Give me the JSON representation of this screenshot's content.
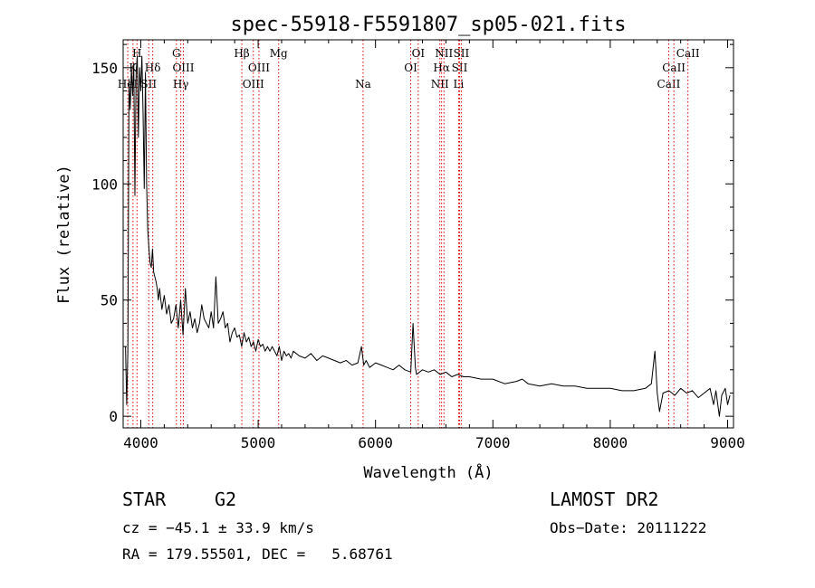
{
  "chart_data": {
    "type": "line",
    "title": "spec-55918-F5591807_sp05-021.fits",
    "xlabel": "Wavelength (Å)",
    "ylabel": "Flux (relative)",
    "xlim": [
      3850,
      9050
    ],
    "ylim": [
      -5,
      162
    ],
    "x_ticks": [
      4000,
      5000,
      6000,
      7000,
      8000,
      9000
    ],
    "x_tick_labels": [
      "4000",
      "5000",
      "6000",
      "7000",
      "8000",
      "9000"
    ],
    "y_ticks": [
      0,
      50,
      100,
      150
    ],
    "y_tick_labels": [
      "0",
      "50",
      "100",
      "150"
    ],
    "grid": false,
    "series": [
      {
        "x": [
          3870,
          3880,
          3890,
          3900,
          3910,
          3920,
          3930,
          3940,
          3950,
          3960,
          3970,
          3980,
          3990,
          4000,
          4010,
          4020,
          4030,
          4040,
          4050,
          4060,
          4070,
          4080,
          4090,
          4100,
          4110,
          4120,
          4130,
          4140,
          4150,
          4160,
          4180,
          4200,
          4220,
          4240,
          4260,
          4280,
          4300,
          4320,
          4340,
          4360,
          4380,
          4400,
          4420,
          4440,
          4460,
          4480,
          4500,
          4520,
          4540,
          4560,
          4580,
          4600,
          4620,
          4640,
          4660,
          4680,
          4700,
          4720,
          4740,
          4760,
          4780,
          4800,
          4820,
          4840,
          4860,
          4880,
          4900,
          4920,
          4940,
          4960,
          4980,
          5000,
          5020,
          5040,
          5060,
          5080,
          5100,
          5120,
          5140,
          5160,
          5180,
          5200,
          5220,
          5240,
          5260,
          5280,
          5300,
          5350,
          5400,
          5450,
          5500,
          5550,
          5600,
          5650,
          5700,
          5750,
          5800,
          5850,
          5880,
          5900,
          5920,
          5950,
          6000,
          6050,
          6100,
          6150,
          6200,
          6250,
          6300,
          6320,
          6340,
          6350,
          6400,
          6450,
          6500,
          6550,
          6600,
          6650,
          6700,
          6750,
          6800,
          6900,
          7000,
          7100,
          7200,
          7250,
          7300,
          7400,
          7500,
          7600,
          7700,
          7800,
          7900,
          8000,
          8100,
          8200,
          8300,
          8350,
          8380,
          8400,
          8420,
          8450,
          8500,
          8550,
          8600,
          8650,
          8700,
          8750,
          8800,
          8850,
          8880,
          8900,
          8930,
          8950,
          8980,
          9000,
          9020
        ],
        "y": [
          30,
          5,
          28,
          145,
          132,
          150,
          138,
          152,
          95,
          148,
          155,
          120,
          150,
          140,
          155,
          130,
          98,
          148,
          100,
          80,
          72,
          66,
          64,
          72,
          62,
          60,
          58,
          55,
          50,
          55,
          46,
          52,
          44,
          48,
          40,
          42,
          48,
          38,
          50,
          35,
          55,
          40,
          45,
          38,
          42,
          36,
          40,
          48,
          42,
          40,
          38,
          45,
          38,
          60,
          40,
          42,
          45,
          38,
          40,
          32,
          36,
          38,
          34,
          35,
          30,
          36,
          32,
          34,
          30,
          32,
          28,
          33,
          30,
          31,
          28,
          30,
          28,
          30,
          28,
          26,
          30,
          24,
          28,
          26,
          27,
          25,
          28,
          26,
          25,
          27,
          24,
          26,
          25,
          24,
          23,
          24,
          22,
          23,
          30,
          22,
          24,
          21,
          23,
          22,
          21,
          20,
          22,
          20,
          19,
          40,
          21,
          18,
          20,
          19,
          20,
          18,
          19,
          17,
          18,
          17,
          17,
          16,
          16,
          14,
          15,
          16,
          14,
          13,
          14,
          13,
          13,
          12,
          12,
          12,
          11,
          11,
          12,
          14,
          28,
          10,
          2,
          10,
          11,
          9,
          12,
          10,
          11,
          8,
          10,
          12,
          5,
          11,
          0,
          9,
          12,
          5,
          9
        ]
      }
    ],
    "line_markers": [
      {
        "wavelength": 3889,
        "label": "HeI",
        "row": 3
      },
      {
        "wavelength": 3934,
        "label": "K",
        "row": 2
      },
      {
        "wavelength": 3968,
        "label": "H",
        "row": 1
      },
      {
        "wavelength": 4068,
        "label": "SII",
        "row": 3
      },
      {
        "wavelength": 4102,
        "label": "Hδ",
        "row": 2
      },
      {
        "wavelength": 4304,
        "label": "G",
        "row": 1
      },
      {
        "wavelength": 4341,
        "label": "Hγ",
        "row": 3
      },
      {
        "wavelength": 4363,
        "label": "OIII",
        "row": 2
      },
      {
        "wavelength": 4861,
        "label": "Hβ",
        "row": 1
      },
      {
        "wavelength": 4959,
        "label": "OIII",
        "row": 3
      },
      {
        "wavelength": 5007,
        "label": "OIII",
        "row": 2
      },
      {
        "wavelength": 5175,
        "label": "Mg",
        "row": 1
      },
      {
        "wavelength": 5894,
        "label": "Na",
        "row": 3
      },
      {
        "wavelength": 6300,
        "label": "OI",
        "row": 2
      },
      {
        "wavelength": 6364,
        "label": "OI",
        "row": 1
      },
      {
        "wavelength": 6548,
        "label": "NII",
        "row": 3
      },
      {
        "wavelength": 6563,
        "label": "Hα",
        "row": 2
      },
      {
        "wavelength": 6583,
        "label": "NII",
        "row": 1
      },
      {
        "wavelength": 6708,
        "label": "Li",
        "row": 3
      },
      {
        "wavelength": 6716,
        "label": "SII",
        "row": 2
      },
      {
        "wavelength": 6731,
        "label": "SII",
        "row": 1
      },
      {
        "wavelength": 8498,
        "label": "CaII",
        "row": 3
      },
      {
        "wavelength": 8542,
        "label": "CaII",
        "row": 2
      },
      {
        "wavelength": 8662,
        "label": "CaII",
        "row": 1
      }
    ],
    "marker_color": "#e00000"
  },
  "info": {
    "object_class": "STAR",
    "subclass": "G2",
    "survey": "LAMOST DR2",
    "velocity": "cz = −45.1 ± 33.9 km/s",
    "obs_date": "Obs−Date: 20111222",
    "coords": "RA = 179.55501, DEC =   5.68761"
  }
}
